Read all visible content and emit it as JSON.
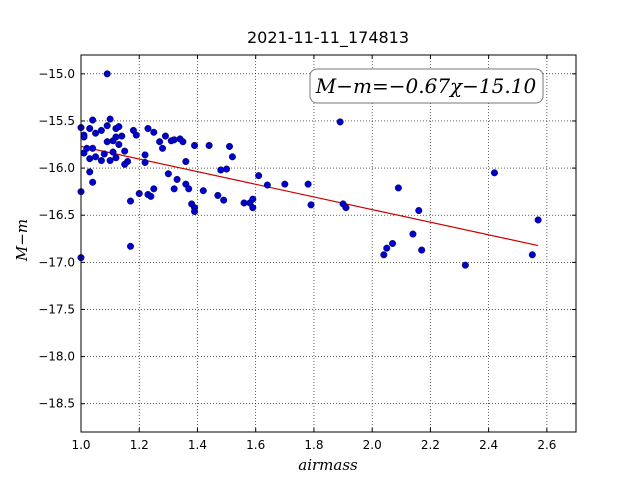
{
  "chart_data": {
    "type": "scatter",
    "title": "2021-11-11_174813",
    "xlabel": "airmass",
    "ylabel": "M−m",
    "xlim": [
      1.0,
      2.7
    ],
    "ylim": [
      -18.8,
      -14.8
    ],
    "x_ticks": [
      "1.0",
      "1.2",
      "1.4",
      "1.6",
      "1.8",
      "2.0",
      "2.2",
      "2.4",
      "2.6"
    ],
    "y_ticks": [
      "−15.0",
      "−15.5",
      "−16.0",
      "−16.5",
      "−17.0",
      "−17.5",
      "−18.0",
      "−18.5"
    ],
    "grid": true,
    "annotation": "M−m=−0.67χ−15.10",
    "annotation_position": "top-right",
    "point_color": "#0000cc",
    "fit_color": "#cc0000",
    "fit": {
      "slope": -0.67,
      "intercept": -15.1,
      "x_range": [
        1.0,
        2.57
      ]
    },
    "points": [
      [
        1.0,
        -15.57
      ],
      [
        1.01,
        -15.65
      ],
      [
        1.01,
        -15.67
      ],
      [
        1.03,
        -15.58
      ],
      [
        1.04,
        -15.49
      ],
      [
        1.05,
        -15.63
      ],
      [
        1.07,
        -15.6
      ],
      [
        1.08,
        -15.85
      ],
      [
        1.09,
        -15.55
      ],
      [
        1.1,
        -15.48
      ],
      [
        1.11,
        -15.71
      ],
      [
        1.12,
        -15.58
      ],
      [
        1.12,
        -15.67
      ],
      [
        1.13,
        -15.56
      ],
      [
        1.14,
        -15.66
      ],
      [
        1.09,
        -15.0
      ],
      [
        1.01,
        -15.84
      ],
      [
        1.02,
        -15.79
      ],
      [
        1.04,
        -15.79
      ],
      [
        1.03,
        -15.9
      ],
      [
        1.05,
        -15.88
      ],
      [
        1.07,
        -15.92
      ],
      [
        1.09,
        -15.72
      ],
      [
        1.11,
        -15.83
      ],
      [
        1.12,
        -15.89
      ],
      [
        1.13,
        -15.75
      ],
      [
        1.15,
        -15.82
      ],
      [
        1.16,
        -15.93
      ],
      [
        1.15,
        -15.96
      ],
      [
        1.18,
        -15.6
      ],
      [
        1.19,
        -15.65
      ],
      [
        1.22,
        -15.86
      ],
      [
        1.22,
        -15.94
      ],
      [
        1.23,
        -15.58
      ],
      [
        1.25,
        -15.62
      ],
      [
        1.27,
        -15.72
      ],
      [
        1.28,
        -15.79
      ],
      [
        1.29,
        -15.66
      ],
      [
        1.31,
        -15.71
      ],
      [
        1.32,
        -15.7
      ],
      [
        1.34,
        -15.69
      ],
      [
        1.35,
        -15.72
      ],
      [
        1.36,
        -15.93
      ],
      [
        1.39,
        -15.76
      ],
      [
        1.44,
        -15.76
      ],
      [
        1.0,
        -16.25
      ],
      [
        1.03,
        -16.04
      ],
      [
        1.04,
        -16.15
      ],
      [
        1.1,
        -15.92
      ],
      [
        1.17,
        -16.35
      ],
      [
        1.2,
        -16.27
      ],
      [
        1.23,
        -16.28
      ],
      [
        1.24,
        -16.3
      ],
      [
        1.25,
        -16.22
      ],
      [
        1.3,
        -16.06
      ],
      [
        1.32,
        -16.22
      ],
      [
        1.33,
        -16.12
      ],
      [
        1.36,
        -16.17
      ],
      [
        1.37,
        -16.22
      ],
      [
        1.38,
        -16.38
      ],
      [
        1.39,
        -16.42
      ],
      [
        1.39,
        -16.46
      ],
      [
        1.42,
        -16.24
      ],
      [
        1.47,
        -16.29
      ],
      [
        1.48,
        -16.02
      ],
      [
        1.49,
        -16.34
      ],
      [
        1.5,
        -16.01
      ],
      [
        1.51,
        -15.77
      ],
      [
        1.52,
        -15.88
      ],
      [
        1.56,
        -16.37
      ],
      [
        1.58,
        -16.37
      ],
      [
        1.59,
        -16.42
      ],
      [
        1.59,
        -16.33
      ],
      [
        1.61,
        -16.08
      ],
      [
        1.64,
        -16.18
      ],
      [
        1.7,
        -16.17
      ],
      [
        1.78,
        -16.17
      ],
      [
        1.79,
        -16.39
      ],
      [
        1.89,
        -15.51
      ],
      [
        1.9,
        -16.38
      ],
      [
        1.91,
        -16.42
      ],
      [
        2.04,
        -16.92
      ],
      [
        2.05,
        -16.85
      ],
      [
        2.07,
        -16.8
      ],
      [
        2.09,
        -16.21
      ],
      [
        2.14,
        -16.7
      ],
      [
        2.16,
        -16.45
      ],
      [
        2.17,
        -16.87
      ],
      [
        2.32,
        -17.03
      ],
      [
        2.42,
        -16.05
      ],
      [
        2.55,
        -16.92
      ],
      [
        2.57,
        -16.55
      ],
      [
        1.0,
        -16.95
      ],
      [
        1.17,
        -16.83
      ]
    ]
  }
}
